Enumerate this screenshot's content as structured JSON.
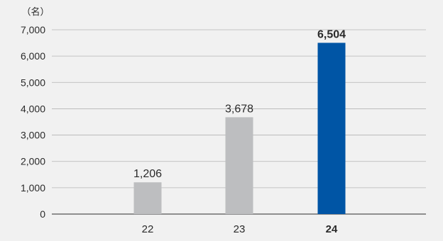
{
  "chart_data": {
    "type": "bar",
    "unit": "（名）",
    "categories": [
      "22",
      "23",
      "24"
    ],
    "values": [
      1206,
      3678,
      6504
    ],
    "value_labels": [
      "1,206",
      "3,678",
      "6,504"
    ],
    "highlight_index": 2,
    "ylim": [
      0,
      7000
    ],
    "yticks": [
      0,
      1000,
      2000,
      3000,
      4000,
      5000,
      6000,
      7000
    ],
    "ytick_labels": [
      "0",
      "1,000",
      "2,000",
      "3,000",
      "4,000",
      "5,000",
      "6,000",
      "7,000"
    ],
    "grid": true,
    "colors": {
      "bar": "#bdbec0",
      "highlight": "#0055a5",
      "grid": "#b5b5b5",
      "axis": "#555555",
      "background": "#f1f1f1"
    }
  }
}
